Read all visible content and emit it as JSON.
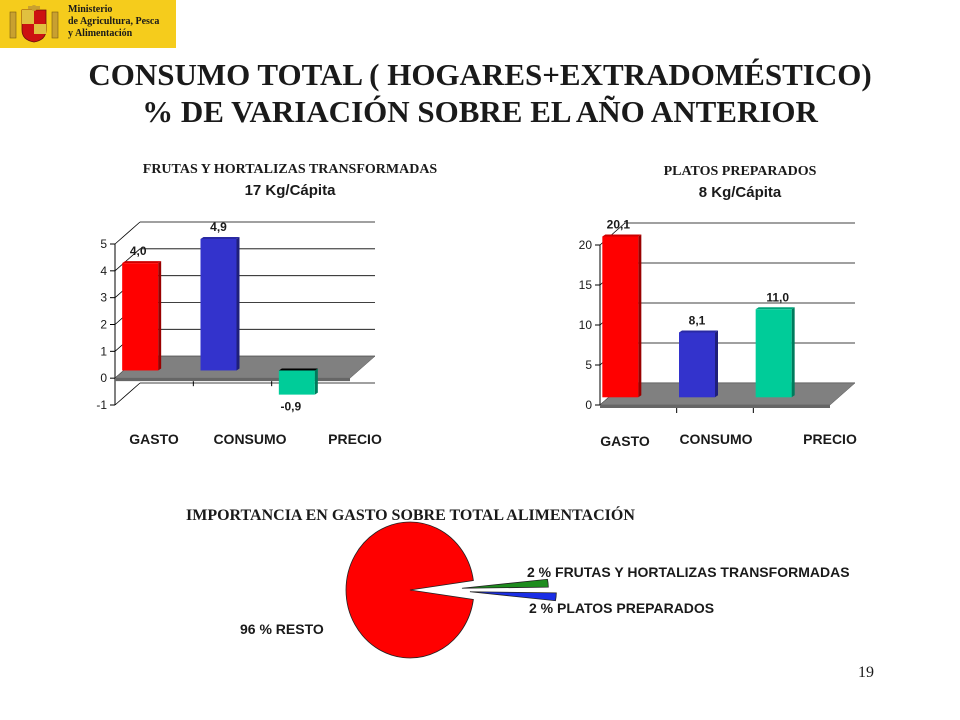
{
  "logo": {
    "ministry_lines": [
      "Ministerio",
      "de Agricultura, Pesca",
      "y Alimentación"
    ]
  },
  "title": {
    "line1": "CONSUMO TOTAL ( HOGARES+EXTRADOMÉSTICO)",
    "line2": "% DE VARIACIÓN SOBRE EL AÑO ANTERIOR"
  },
  "page_number": "19",
  "colors": {
    "red": "#ff0000",
    "blue": "#3333cc",
    "teal": "#00cc99",
    "green": "#1e8c1e",
    "floor": "#808080"
  },
  "chart_data": [
    {
      "type": "bar",
      "title": "FRUTAS Y HORTALIZAS TRANSFORMADAS",
      "subtitle": "17 Kg/Cápita",
      "categories": [
        "GASTO",
        "CONSUMO",
        "PRECIO"
      ],
      "values": [
        4.0,
        4.9,
        -0.9
      ],
      "data_labels": [
        "4,0",
        "4,9",
        "-0,9"
      ],
      "colors": [
        "#ff0000",
        "#3333cc",
        "#00cc99"
      ],
      "ylim": [
        -1,
        5
      ],
      "yticks": [
        -1,
        0,
        1,
        2,
        3,
        4,
        5
      ],
      "grid": true,
      "xlabel": "",
      "ylabel": ""
    },
    {
      "type": "bar",
      "title": "PLATOS PREPARADOS",
      "subtitle": "8 Kg/Cápita",
      "categories": [
        "GASTO",
        "CONSUMO",
        "PRECIO"
      ],
      "values": [
        20.1,
        8.1,
        11.0
      ],
      "data_labels": [
        "20,1",
        "8,1",
        "11,0"
      ],
      "colors": [
        "#ff0000",
        "#3333cc",
        "#00cc99"
      ],
      "ylim": [
        0,
        20
      ],
      "yticks": [
        0,
        5,
        10,
        15,
        20
      ],
      "grid": true,
      "xlabel": "",
      "ylabel": ""
    },
    {
      "type": "pie",
      "title": "IMPORTANCIA EN GASTO SOBRE TOTAL ALIMENTACIÓN",
      "slices": [
        {
          "label": "96 % RESTO",
          "value": 96,
          "color": "#ff0000"
        },
        {
          "label": "2 % FRUTAS Y HORTALIZAS TRANSFORMADAS",
          "value": 2,
          "color": "#1e8c1e"
        },
        {
          "label": "2 % PLATOS PREPARADOS",
          "value": 2,
          "color": "#0000ff"
        }
      ]
    }
  ]
}
